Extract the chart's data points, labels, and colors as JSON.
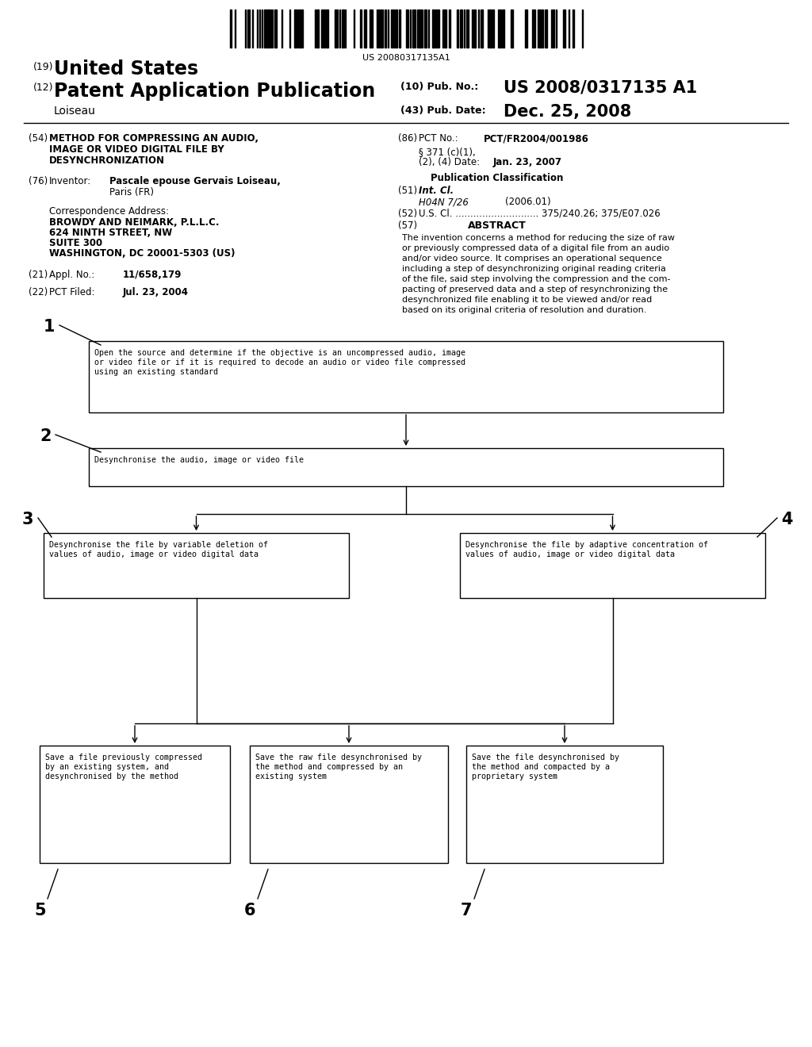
{
  "background_color": "#ffffff",
  "barcode_text": "US 20080317135A1",
  "header": {
    "line1_num": "(19)",
    "line1_text": "United States",
    "line2_num": "(12)",
    "line2_text": "Patent Application Publication",
    "line3_left": "Loiseau",
    "line3_right_num": "(10)",
    "line3_right_label": "Pub. No.:",
    "line3_right_val": "US 2008/0317135 A1",
    "line4_right_num": "(43)",
    "line4_right_label": "Pub. Date:",
    "line4_right_val": "Dec. 25, 2008"
  },
  "left_column": {
    "field54_num": "(54)",
    "field54_line1": "METHOD FOR COMPRESSING AN AUDIO,",
    "field54_line2": "IMAGE OR VIDEO DIGITAL FILE BY",
    "field54_line3": "DESYNCHRONIZATION",
    "field76_num": "(76)",
    "field76_label": "Inventor:",
    "field76_name": "Pascale epouse Gervais Loiseau,",
    "field76_city": "Paris (FR)",
    "corr_label": "Correspondence Address:",
    "corr_line1": "BROWDY AND NEIMARK, P.L.L.C.",
    "corr_line2": "624 NINTH STREET, NW",
    "corr_line3": "SUITE 300",
    "corr_line4": "WASHINGTON, DC 20001-5303 (US)",
    "field21_num": "(21)",
    "field21_label": "Appl. No.:",
    "field21_val": "11/658,179",
    "field22_num": "(22)",
    "field22_label": "PCT Filed:",
    "field22_val": "Jul. 23, 2004"
  },
  "right_column": {
    "field86_num": "(86)",
    "field86_label": "PCT No.:",
    "field86_val": "PCT/FR2004/001986",
    "field86_sub1": "§ 371 (c)(1),",
    "field86_sub2": "(2), (4) Date:",
    "field86_date": "Jan. 23, 2007",
    "pub_class_label": "Publication Classification",
    "field51_num": "(51)",
    "field51_label": "Int. Cl.",
    "field51_val": "H04N 7/26",
    "field51_year": "(2006.01)",
    "field52_num": "(52)",
    "field52_label": "U.S. Cl.",
    "field52_dots": "............................",
    "field52_val": "375/240.26; 375/E07.026",
    "field57_num": "(57)",
    "field57_label": "ABSTRACT",
    "abstract_lines": [
      "The invention concerns a method for reducing the size of raw",
      "or previously compressed data of a digital file from an audio",
      "and/or video source. It comprises an operational sequence",
      "including a step of desynchronizing original reading criteria",
      "of the file, said step involving the compression and the com-",
      "pacting of preserved data and a step of resynchronizing the",
      "desynchronized file enabling it to be viewed and/or read",
      "based on its original criteria of resolution and duration."
    ]
  },
  "diagram": {
    "box1_text_lines": [
      "Open the source and determine if the objective is an uncompressed audio, image",
      "or video file or if it is required to decode an audio or video file compressed",
      "using an existing standard"
    ],
    "box2_text": "Desynchronise the audio, image or video file",
    "box3_text_lines": [
      "Desynchronise the file by variable deletion of",
      "values of audio, image or video digital data"
    ],
    "box4_text_lines": [
      "Desynchronise the file by adaptive concentration of",
      "values of audio, image or video digital data"
    ],
    "box5_text_lines": [
      "Save a file previously compressed",
      "by an existing system, and",
      "desynchronised by the method"
    ],
    "box6_text_lines": [
      "Save the raw file desynchronised by",
      "the method and compressed by an",
      "existing system"
    ],
    "box7_text_lines": [
      "Save the file desynchronised by",
      "the method and compacted by a",
      "proprietary system"
    ]
  }
}
